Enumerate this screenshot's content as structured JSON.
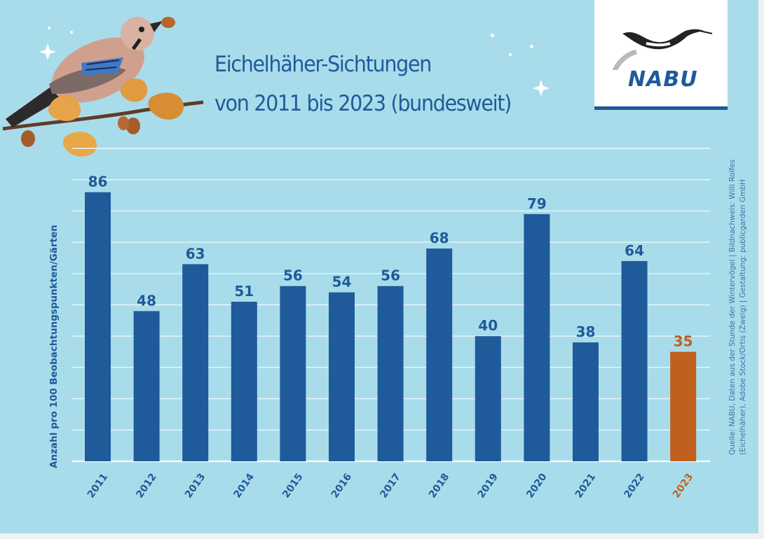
{
  "colors": {
    "background": "#a9dcea",
    "bar": "#1f5a9a",
    "highlight": "#c0601f",
    "grid": "#e8f6fb",
    "text": "#1f5a9a"
  },
  "logo": {
    "text": "NABU",
    "icon": "stork-icon"
  },
  "illustration": {
    "icon": "jay-bird-on-oak-branch-icon"
  },
  "decorations": {
    "icon": "sparkle-star-icon"
  },
  "source_lines": [
    "Quelle: NABU, Daten aus der Stunde der Wintervögel | Bildnachweis: Willi Rolfes",
    "(Eichelhäher), Adobe Stock/Ortis (Zweig) | Gestaltung: publicgarden GmbH"
  ],
  "chart_data": {
    "type": "bar",
    "title_lines": [
      "Eichelhäher-Sichtungen",
      "von 2011 bis 2023 (bundesweit)"
    ],
    "ylabel": "Anzahl pro 100 Beobachtungspunkten/Gärten",
    "xlabel": "",
    "categories": [
      "2011",
      "2012",
      "2013",
      "2014",
      "2015",
      "2016",
      "2017",
      "2018",
      "2019",
      "2020",
      "2021",
      "2022",
      "2023"
    ],
    "values": [
      86,
      48,
      63,
      51,
      56,
      54,
      56,
      68,
      40,
      79,
      38,
      64,
      35
    ],
    "highlight_category": "2023",
    "ylim": [
      0,
      100
    ],
    "grid": true,
    "legend": "none"
  }
}
